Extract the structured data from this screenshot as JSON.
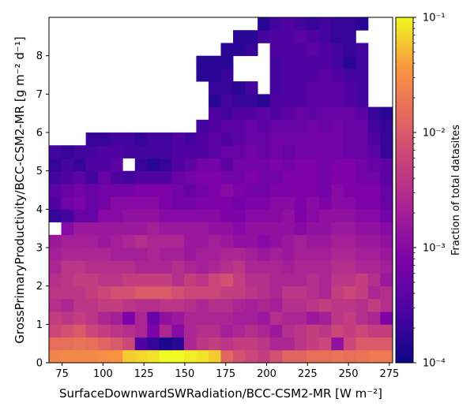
{
  "chart_data": {
    "type": "heatmap",
    "title": "",
    "xlabel": "SurfaceDownwardSWRadiation/BCC-CSM2-MR [W m⁻²]",
    "ylabel": "GrossPrimaryProductivity/BCC-CSM2-MR [g m⁻² d⁻¹]",
    "colorbar_label": "Fraction of total datasites",
    "colormap": "plasma",
    "color_scale": "log",
    "clim": [
      0.0001,
      0.1
    ],
    "colorbar_ticks": [
      {
        "value": 0.1,
        "label": "10⁻¹"
      },
      {
        "value": 0.01,
        "label": "10⁻²"
      },
      {
        "value": 0.001,
        "label": "10⁻³"
      },
      {
        "value": 0.0001,
        "label": "10⁻⁴"
      }
    ],
    "xlim": [
      67,
      277
    ],
    "ylim": [
      0,
      9
    ],
    "xticks": [
      75,
      100,
      125,
      150,
      175,
      200,
      225,
      250,
      275
    ],
    "yticks": [
      0,
      1,
      2,
      3,
      4,
      5,
      6,
      7,
      8
    ],
    "x_bins": {
      "start": 67,
      "width": 7.5,
      "count": 28
    },
    "y_bins": {
      "start": 0,
      "width": 0.3333,
      "count": 27
    },
    "rows_log10_bottom_to_top": [
      [
        -1.6,
        -1.55,
        -1.55,
        -1.55,
        -1.5,
        -1.45,
        -1.2,
        -1.15,
        -1.1,
        -1.0,
        -1.0,
        -1.05,
        -1.1,
        -1.2,
        -1.9,
        -2.1,
        -2.2,
        -2.3,
        -2.1,
        -1.9,
        -1.9,
        -1.8,
        -1.8,
        -1.75,
        -1.8,
        -1.75,
        -1.7,
        -1.7
      ],
      [
        -1.8,
        -1.8,
        -1.75,
        -1.8,
        -1.9,
        -2.0,
        -2.2,
        -3.5,
        -3.7,
        -3.9,
        -3.8,
        -2.6,
        -2.4,
        -2.3,
        -2.4,
        -2.3,
        -2.3,
        -2.4,
        -2.6,
        -2.6,
        -2.4,
        -2.3,
        -2.2,
        -2.9,
        -2.2,
        -2.0,
        -2.0,
        -2.0
      ],
      [
        -2.2,
        -2.1,
        -2.0,
        -2.2,
        -2.3,
        -2.4,
        -2.5,
        -2.6,
        -3.1,
        -2.6,
        -3.0,
        -2.6,
        -2.5,
        -2.5,
        -2.7,
        -2.6,
        -2.5,
        -2.6,
        -2.8,
        -2.5,
        -2.4,
        -2.3,
        -2.4,
        -2.2,
        -2.3,
        -2.2,
        -2.3,
        -2.3
      ],
      [
        -2.3,
        -2.4,
        -2.3,
        -2.4,
        -2.6,
        -2.7,
        -3.1,
        -2.6,
        -3.3,
        -2.9,
        -2.8,
        -2.6,
        -2.6,
        -2.6,
        -2.6,
        -2.7,
        -2.7,
        -2.8,
        -2.5,
        -2.6,
        -2.6,
        -2.8,
        -2.7,
        -2.4,
        -2.3,
        -2.5,
        -2.6,
        -3.1
      ],
      [
        -2.5,
        -2.6,
        -2.4,
        -2.4,
        -2.3,
        -2.3,
        -2.4,
        -2.5,
        -2.5,
        -2.4,
        -2.4,
        -2.5,
        -2.6,
        -2.5,
        -2.5,
        -2.6,
        -2.7,
        -2.6,
        -2.7,
        -2.5,
        -2.5,
        -2.4,
        -2.3,
        -2.4,
        -2.4,
        -2.5,
        -2.3,
        -2.5
      ],
      [
        -2.4,
        -2.4,
        -2.4,
        -2.3,
        -2.2,
        -2.1,
        -2.1,
        -2.0,
        -2.0,
        -2.0,
        -2.1,
        -2.2,
        -2.2,
        -2.2,
        -2.3,
        -2.3,
        -2.4,
        -2.5,
        -2.6,
        -2.4,
        -2.4,
        -2.5,
        -2.6,
        -2.3,
        -2.2,
        -2.3,
        -2.6,
        -2.5
      ],
      [
        -2.5,
        -2.4,
        -2.3,
        -2.3,
        -2.4,
        -2.4,
        -2.3,
        -2.3,
        -2.3,
        -2.3,
        -2.5,
        -2.3,
        -2.4,
        -2.2,
        -2.1,
        -2.3,
        -2.5,
        -2.5,
        -2.6,
        -2.6,
        -2.6,
        -2.5,
        -2.6,
        -2.4,
        -2.4,
        -2.3,
        -2.5,
        -2.8
      ],
      [
        -2.6,
        -2.4,
        -2.4,
        -2.5,
        -2.5,
        -2.5,
        -2.5,
        -2.6,
        -2.6,
        -2.6,
        -2.5,
        -2.6,
        -2.7,
        -2.6,
        -2.5,
        -2.4,
        -2.6,
        -2.6,
        -2.6,
        -2.7,
        -2.6,
        -2.6,
        -2.6,
        -2.5,
        -2.5,
        -2.6,
        -2.6,
        -2.7
      ],
      [
        -2.7,
        -2.6,
        -2.6,
        -2.6,
        -2.6,
        -2.7,
        -2.7,
        -2.7,
        -2.6,
        -2.7,
        -2.7,
        -2.8,
        -2.7,
        -2.7,
        -2.6,
        -2.6,
        -2.7,
        -2.8,
        -2.7,
        -2.8,
        -2.7,
        -2.7,
        -2.7,
        -2.6,
        -2.6,
        -2.7,
        -2.7,
        -2.8
      ],
      [
        -2.8,
        -2.7,
        -2.7,
        -2.7,
        -2.8,
        -2.7,
        -2.6,
        -2.5,
        -2.6,
        -2.6,
        -2.6,
        -2.8,
        -2.8,
        -2.7,
        -2.8,
        -2.9,
        -2.9,
        -3.0,
        -2.9,
        -2.8,
        -2.7,
        -2.8,
        -2.8,
        -2.7,
        -2.7,
        -2.8,
        -2.8,
        -2.9
      ],
      [
        null,
        -3.0,
        -2.8,
        -2.8,
        -2.8,
        -2.8,
        -2.8,
        -2.8,
        -2.7,
        -2.8,
        -2.8,
        -2.8,
        -2.8,
        -2.9,
        -2.9,
        -3.0,
        -2.9,
        -2.9,
        -2.9,
        -2.9,
        -3.0,
        -2.9,
        -2.9,
        -2.8,
        -2.8,
        -2.9,
        -2.9,
        -3.0
      ],
      [
        -3.7,
        -3.6,
        -3.3,
        -3.3,
        -3.0,
        -3.0,
        -2.9,
        -2.9,
        -2.9,
        -3.0,
        -3.0,
        -3.0,
        -3.0,
        -3.0,
        -3.1,
        -3.1,
        -3.0,
        -3.0,
        -3.0,
        -2.9,
        -3.1,
        -3.0,
        -2.9,
        -2.9,
        -2.9,
        -3.0,
        -3.0,
        -3.2
      ],
      [
        -3.5,
        -3.2,
        -3.1,
        -3.3,
        -3.2,
        -3.0,
        -3.0,
        -3.0,
        -3.0,
        -3.1,
        -3.2,
        -3.2,
        -3.1,
        -3.1,
        -3.1,
        -3.2,
        -3.1,
        -3.1,
        -3.0,
        -3.0,
        -3.1,
        -3.0,
        -3.1,
        -3.0,
        -3.0,
        -3.1,
        -3.1,
        -3.3
      ],
      [
        -3.4,
        -3.3,
        -3.2,
        -3.3,
        -3.2,
        -3.2,
        -3.2,
        -3.1,
        -3.1,
        -3.1,
        -3.2,
        -3.3,
        -3.2,
        -3.1,
        -3.0,
        -3.1,
        -3.2,
        -3.2,
        -3.1,
        -3.1,
        -3.1,
        -3.1,
        -3.2,
        -3.0,
        -3.1,
        -3.1,
        -3.1,
        -3.3
      ],
      [
        -3.6,
        -3.5,
        -3.4,
        -3.6,
        -3.3,
        -3.5,
        -3.6,
        -3.5,
        -3.5,
        -3.5,
        -3.3,
        -3.2,
        -3.1,
        -3.1,
        -3.2,
        -3.2,
        -3.1,
        -3.2,
        -3.2,
        -3.1,
        -3.1,
        -3.1,
        -3.2,
        -3.1,
        -3.1,
        -3.2,
        -3.2,
        -3.4
      ],
      [
        -3.7,
        -3.6,
        -3.7,
        -3.5,
        -3.5,
        -3.4,
        null,
        -3.7,
        -3.8,
        -3.7,
        -3.5,
        -3.4,
        -3.2,
        -3.2,
        -3.4,
        -3.2,
        -3.2,
        -3.2,
        -3.1,
        -3.2,
        -3.1,
        -3.1,
        -3.2,
        -3.1,
        -3.1,
        -3.2,
        -3.3,
        -3.4
      ],
      [
        -3.6,
        -3.7,
        -3.6,
        -3.6,
        -3.5,
        -3.5,
        -3.6,
        -3.6,
        -3.6,
        -3.6,
        -3.5,
        -3.5,
        -3.5,
        -3.4,
        -3.3,
        -3.3,
        -3.2,
        -3.3,
        -3.2,
        -3.3,
        -3.2,
        -3.2,
        -3.2,
        -3.2,
        -3.3,
        -3.3,
        -3.4,
        -3.7
      ],
      [
        null,
        null,
        null,
        -3.7,
        -3.7,
        -3.6,
        -3.6,
        -3.7,
        -3.6,
        -3.6,
        -3.5,
        -3.6,
        -3.5,
        -3.4,
        -3.5,
        -3.4,
        -3.3,
        -3.3,
        -3.2,
        -3.2,
        -3.2,
        -3.2,
        -3.2,
        -3.2,
        -3.3,
        -3.3,
        -3.5,
        -3.7
      ],
      [
        null,
        null,
        null,
        null,
        null,
        null,
        null,
        null,
        null,
        null,
        null,
        null,
        -3.6,
        -3.5,
        -3.4,
        -3.4,
        -3.3,
        -3.4,
        -3.3,
        -3.3,
        -3.3,
        -3.2,
        -3.3,
        -3.2,
        -3.3,
        -3.3,
        -3.6,
        -3.7
      ],
      [
        null,
        null,
        null,
        null,
        null,
        null,
        null,
        null,
        null,
        null,
        null,
        null,
        null,
        -3.5,
        -3.6,
        -3.5,
        -3.5,
        -3.4,
        -3.5,
        -3.4,
        -3.3,
        -3.4,
        -3.3,
        -3.3,
        -3.3,
        -3.4,
        -3.7,
        -3.8
      ],
      [
        null,
        null,
        null,
        null,
        null,
        null,
        null,
        null,
        null,
        null,
        null,
        null,
        null,
        -3.8,
        -3.6,
        -3.7,
        -3.7,
        -3.8,
        -3.5,
        -3.5,
        -3.5,
        -3.4,
        -3.4,
        -3.4,
        -3.5,
        -3.6,
        null,
        null
      ],
      [
        null,
        null,
        null,
        null,
        null,
        null,
        null,
        null,
        null,
        null,
        null,
        null,
        null,
        -3.7,
        -3.7,
        -3.8,
        -3.6,
        null,
        -3.6,
        -3.5,
        -3.5,
        -3.4,
        -3.4,
        -3.4,
        -3.5,
        -3.6,
        null,
        null
      ],
      [
        null,
        null,
        null,
        null,
        null,
        null,
        null,
        null,
        null,
        null,
        null,
        null,
        -3.8,
        -3.8,
        -3.7,
        null,
        null,
        null,
        -3.6,
        -3.5,
        -3.5,
        -3.5,
        -3.4,
        -3.5,
        -3.6,
        -3.6,
        null,
        null
      ],
      [
        null,
        null,
        null,
        null,
        null,
        null,
        null,
        null,
        null,
        null,
        null,
        null,
        -3.8,
        -3.8,
        -3.8,
        null,
        null,
        null,
        -3.6,
        -3.5,
        -3.5,
        -3.5,
        -3.5,
        -3.6,
        -3.8,
        -3.6,
        null,
        null
      ],
      [
        null,
        null,
        null,
        null,
        null,
        null,
        null,
        null,
        null,
        null,
        null,
        null,
        null,
        null,
        -3.8,
        -3.8,
        -3.7,
        null,
        -3.5,
        -3.5,
        -3.5,
        -3.4,
        -3.5,
        -3.6,
        -3.7,
        -3.6,
        null,
        null
      ],
      [
        null,
        null,
        null,
        null,
        null,
        null,
        null,
        null,
        null,
        null,
        null,
        null,
        null,
        null,
        null,
        -3.8,
        -3.8,
        -3.6,
        -3.5,
        -3.5,
        -3.4,
        -3.5,
        -3.6,
        -3.7,
        -3.7,
        null,
        null,
        null
      ],
      [
        null,
        null,
        null,
        null,
        null,
        null,
        null,
        null,
        null,
        null,
        null,
        null,
        null,
        null,
        null,
        null,
        null,
        -3.8,
        -3.6,
        -3.5,
        -3.6,
        -3.7,
        -3.6,
        -3.7,
        -3.7,
        -3.8,
        null,
        null
      ]
    ]
  }
}
